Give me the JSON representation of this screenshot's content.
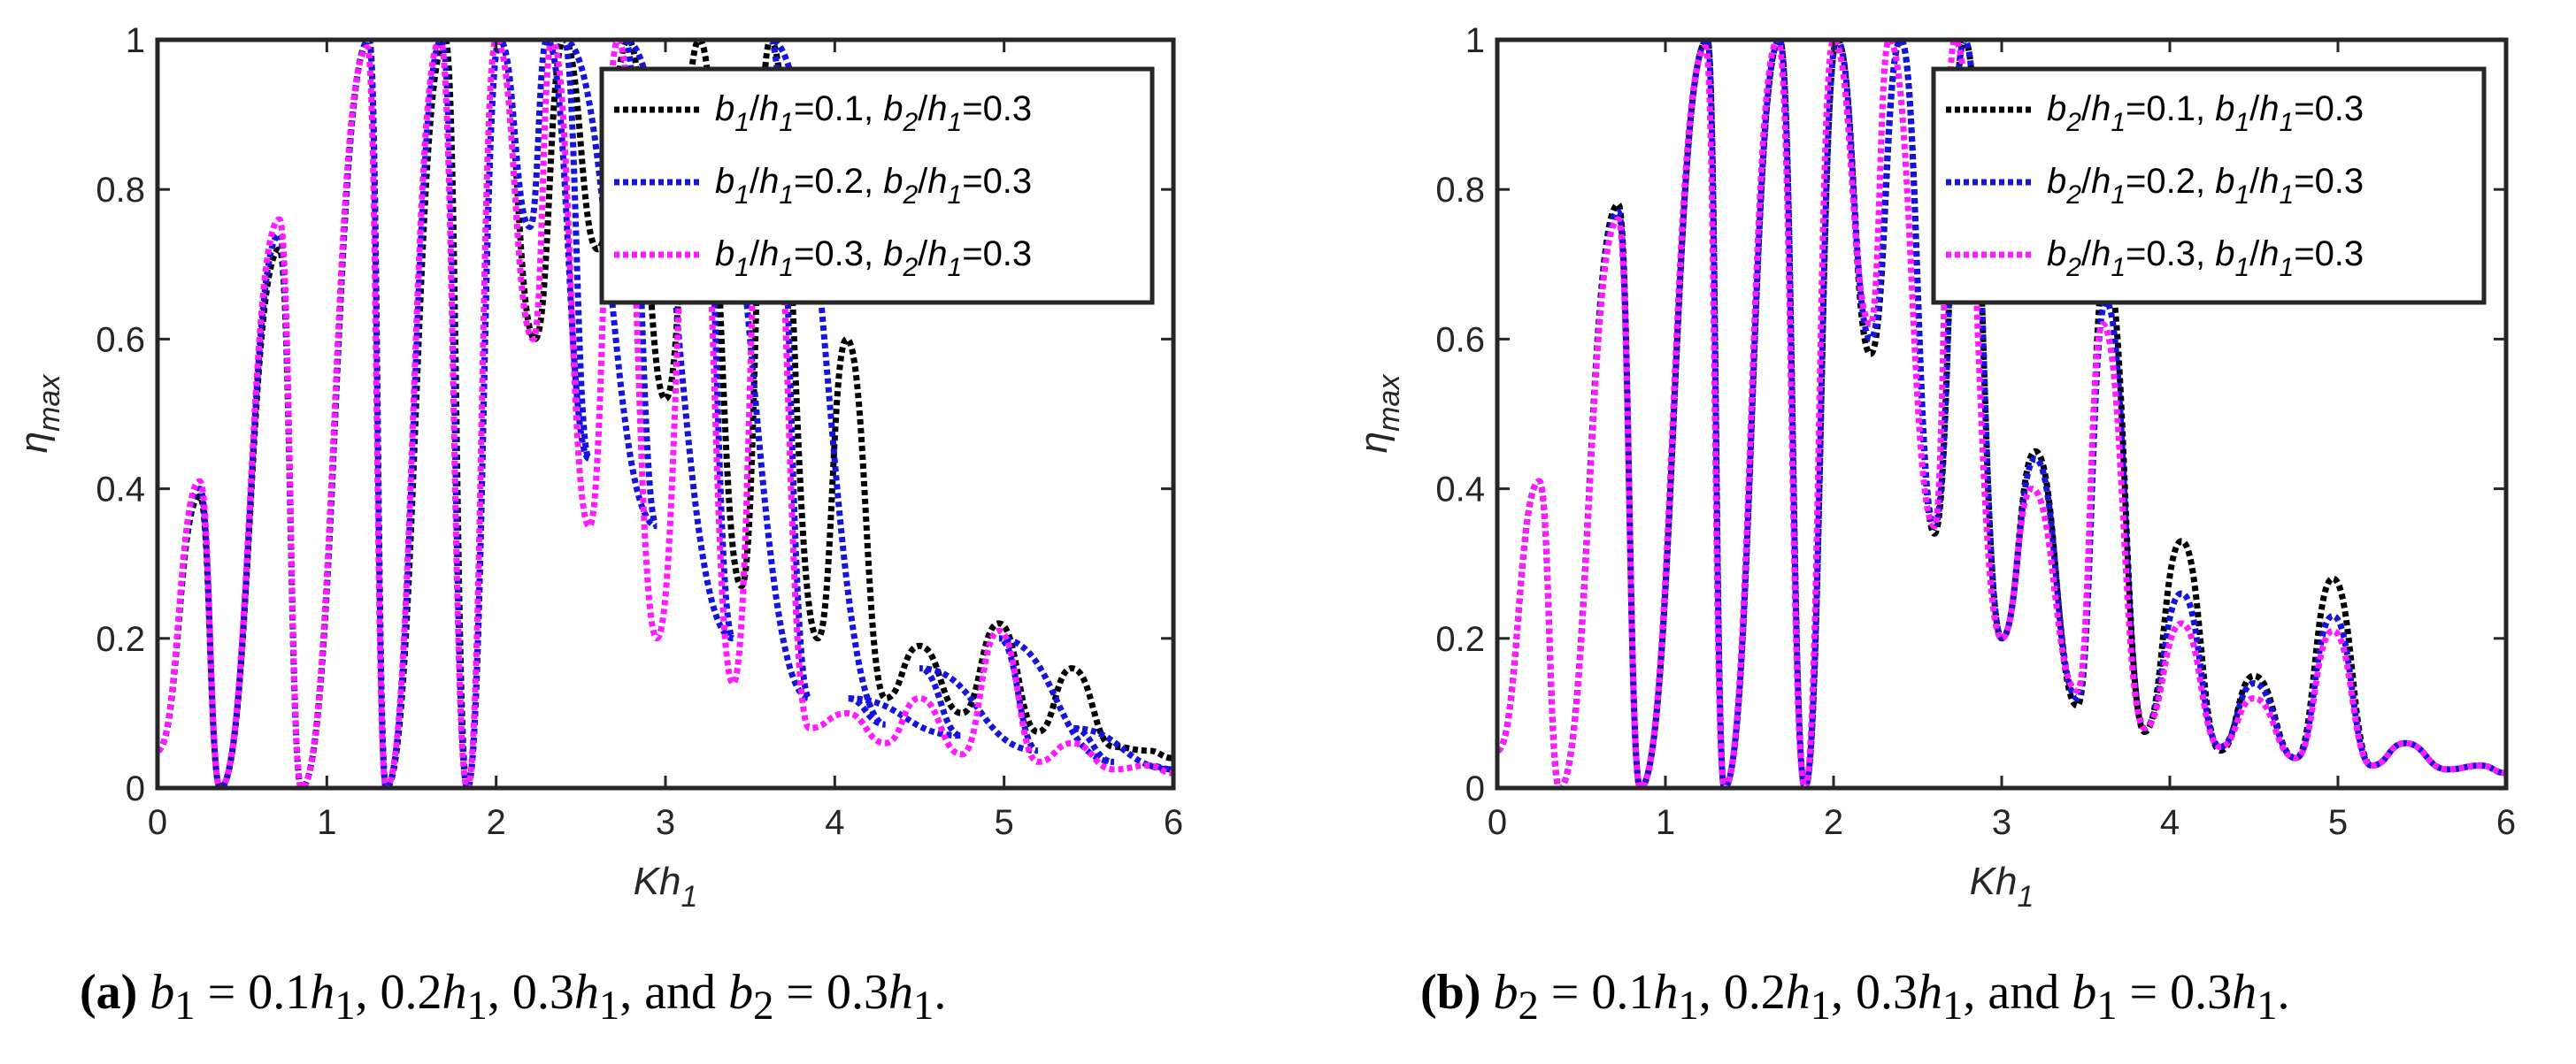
{
  "colors": {
    "series_1": "#000000",
    "series_2": "#1414dc",
    "series_3": "#ff1aff"
  },
  "chart_data": [
    {
      "type": "line",
      "panel": "a",
      "xlabel": "Kh1",
      "ylabel": "ηmax",
      "xlim": [
        0,
        6
      ],
      "ylim": [
        0,
        1
      ],
      "xticks": [
        "0",
        "1",
        "2",
        "3",
        "4",
        "5",
        "6"
      ],
      "yticks": [
        "0",
        "0.2",
        "0.4",
        "0.6",
        "0.8",
        "1"
      ],
      "legend": [
        {
          "a": "b",
          "as": "1",
          "b": "h",
          "bs": "1",
          "v1": "=0.1, ",
          "c": "b",
          "cs": "2",
          "d": "h",
          "ds": "1",
          "v2": "=0.3"
        },
        {
          "a": "b",
          "as": "1",
          "b": "h",
          "bs": "1",
          "v1": "=0.2, ",
          "c": "b",
          "cs": "2",
          "d": "h",
          "ds": "1",
          "v2": "=0.3"
        },
        {
          "a": "b",
          "as": "1",
          "b": "h",
          "bs": "1",
          "v1": "=0.3, ",
          "c": "b",
          "cs": "2",
          "d": "h",
          "ds": "1",
          "v2": "=0.3"
        }
      ],
      "series": [
        {
          "name": "b1/h1=0.1, b2/h1=0.3",
          "color": "#000000",
          "peaks": [
            [
              0.25,
              0.39
            ],
            [
              0.72,
              0.72
            ],
            [
              1.25,
              1.0
            ],
            [
              1.7,
              1.0
            ],
            [
              2.02,
              1.0
            ],
            [
              2.4,
              1.0
            ],
            [
              2.78,
              1.0
            ],
            [
              3.2,
              1.0
            ],
            [
              3.62,
              1.0
            ],
            [
              4.07,
              0.6
            ],
            [
              4.5,
              0.19
            ],
            [
              4.97,
              0.22
            ],
            [
              5.4,
              0.16
            ],
            [
              5.85,
              0.05
            ]
          ],
          "troughs": [
            [
              0.37,
              0.0
            ],
            [
              0.85,
              0.0
            ],
            [
              1.35,
              0.0
            ],
            [
              1.83,
              0.0
            ],
            [
              2.23,
              0.6
            ],
            [
              2.6,
              0.72
            ],
            [
              3.0,
              0.52
            ],
            [
              3.45,
              0.27
            ],
            [
              3.9,
              0.2
            ],
            [
              4.3,
              0.12
            ],
            [
              4.75,
              0.1
            ],
            [
              5.2,
              0.075
            ],
            [
              5.65,
              0.055
            ],
            [
              6.0,
              0.04
            ]
          ]
        },
        {
          "name": "b1/h1=0.2, b2/h1=0.3",
          "color": "#1414dc",
          "peaks": [
            [
              0.25,
              0.4
            ],
            [
              0.72,
              0.74
            ],
            [
              1.25,
              1.0
            ],
            [
              1.68,
              1.0
            ],
            [
              2.02,
              1.0
            ],
            [
              2.3,
              1.0
            ],
            [
              2.4,
              1.0
            ],
            [
              2.76,
              1.0
            ],
            [
              3.2,
              0.95
            ],
            [
              3.62,
              1.0
            ],
            [
              4.07,
              0.12
            ],
            [
              4.5,
              0.16
            ],
            [
              4.97,
              0.2
            ],
            [
              5.4,
              0.08
            ],
            [
              5.85,
              0.03
            ]
          ],
          "troughs": [
            [
              0.37,
              0.0
            ],
            [
              0.85,
              0.0
            ],
            [
              1.35,
              0.0
            ],
            [
              1.83,
              0.0
            ],
            [
              2.2,
              0.75
            ],
            [
              2.55,
              0.44
            ],
            [
              2.95,
              0.35
            ],
            [
              3.4,
              0.2
            ],
            [
              3.85,
              0.12
            ],
            [
              4.3,
              0.085
            ],
            [
              4.75,
              0.07
            ],
            [
              5.2,
              0.05
            ],
            [
              5.65,
              0.035
            ],
            [
              6.0,
              0.025
            ]
          ]
        },
        {
          "name": "b1/h1=0.3, b2/h1=0.3",
          "color": "#ff1aff",
          "peaks": [
            [
              0.25,
              0.41
            ],
            [
              0.72,
              0.76
            ],
            [
              1.24,
              0.99
            ],
            [
              1.67,
              1.0
            ],
            [
              2.0,
              1.0
            ],
            [
              2.33,
              1.0
            ],
            [
              2.72,
              1.0
            ],
            [
              3.18,
              0.92
            ],
            [
              3.6,
              0.95
            ],
            [
              4.07,
              0.1
            ],
            [
              4.5,
              0.12
            ],
            [
              4.97,
              0.21
            ],
            [
              5.4,
              0.06
            ],
            [
              5.85,
              0.03
            ]
          ],
          "troughs": [
            [
              0.37,
              0.0
            ],
            [
              0.85,
              0.0
            ],
            [
              1.35,
              0.0
            ],
            [
              1.83,
              0.0
            ],
            [
              2.22,
              0.6
            ],
            [
              2.55,
              0.35
            ],
            [
              2.95,
              0.2
            ],
            [
              3.4,
              0.14
            ],
            [
              3.85,
              0.08
            ],
            [
              4.3,
              0.06
            ],
            [
              4.75,
              0.045
            ],
            [
              5.2,
              0.035
            ],
            [
              5.65,
              0.025
            ],
            [
              6.0,
              0.02
            ]
          ]
        }
      ]
    },
    {
      "type": "line",
      "panel": "b",
      "xlabel": "Kh1",
      "ylabel": "ηmax",
      "xlim": [
        0,
        6
      ],
      "ylim": [
        0,
        1
      ],
      "xticks": [
        "0",
        "1",
        "2",
        "3",
        "4",
        "5",
        "6"
      ],
      "yticks": [
        "0",
        "0.2",
        "0.4",
        "0.6",
        "0.8",
        "1"
      ],
      "legend": [
        {
          "a": "b",
          "as": "2",
          "b": "h",
          "bs": "1",
          "v1": "=0.1, ",
          "c": "b",
          "cs": "1",
          "d": "h",
          "ds": "1",
          "v2": "=0.3"
        },
        {
          "a": "b",
          "as": "2",
          "b": "h",
          "bs": "1",
          "v1": "=0.2, ",
          "c": "b",
          "cs": "1",
          "d": "h",
          "ds": "1",
          "v2": "=0.3"
        },
        {
          "a": "b",
          "as": "2",
          "b": "h",
          "bs": "1",
          "v1": "=0.3, ",
          "c": "b",
          "cs": "1",
          "d": "h",
          "ds": "1",
          "v2": "=0.3"
        }
      ],
      "series": [
        {
          "name": "b2/h1=0.1, b1/h1=0.3",
          "color": "#000000",
          "peaks": [
            [
              0.25,
              0.41
            ],
            [
              0.72,
              0.78
            ],
            [
              1.25,
              1.0
            ],
            [
              1.68,
              1.0
            ],
            [
              2.02,
              1.0
            ],
            [
              2.4,
              1.0
            ],
            [
              2.78,
              1.0
            ],
            [
              3.2,
              0.45
            ],
            [
              3.62,
              0.7
            ],
            [
              4.07,
              0.33
            ],
            [
              4.5,
              0.15
            ],
            [
              4.97,
              0.28
            ],
            [
              5.4,
              0.06
            ],
            [
              5.85,
              0.03
            ]
          ],
          "troughs": [
            [
              0.37,
              0.0
            ],
            [
              0.85,
              0.0
            ],
            [
              1.35,
              0.0
            ],
            [
              1.83,
              0.0
            ],
            [
              2.22,
              0.58
            ],
            [
              2.6,
              0.34
            ],
            [
              3.0,
              0.2
            ],
            [
              3.45,
              0.11
            ],
            [
              3.85,
              0.075
            ],
            [
              4.3,
              0.05
            ],
            [
              4.75,
              0.04
            ],
            [
              5.2,
              0.03
            ],
            [
              5.65,
              0.025
            ],
            [
              6.0,
              0.02
            ]
          ]
        },
        {
          "name": "b2/h1=0.2, b1/h1=0.3",
          "color": "#1414dc",
          "peaks": [
            [
              0.25,
              0.41
            ],
            [
              0.72,
              0.77
            ],
            [
              1.25,
              1.0
            ],
            [
              1.68,
              1.0
            ],
            [
              2.02,
              1.0
            ],
            [
              2.4,
              1.0
            ],
            [
              2.78,
              1.0
            ],
            [
              3.2,
              0.44
            ],
            [
              3.62,
              0.65
            ],
            [
              4.07,
              0.26
            ],
            [
              4.5,
              0.14
            ],
            [
              4.97,
              0.23
            ],
            [
              5.4,
              0.06
            ],
            [
              5.85,
              0.03
            ]
          ],
          "troughs": [
            [
              0.37,
              0.0
            ],
            [
              0.85,
              0.0
            ],
            [
              1.35,
              0.0
            ],
            [
              1.83,
              0.0
            ],
            [
              2.22,
              0.6
            ],
            [
              2.6,
              0.35
            ],
            [
              3.0,
              0.2
            ],
            [
              3.45,
              0.12
            ],
            [
              3.85,
              0.08
            ],
            [
              4.3,
              0.055
            ],
            [
              4.75,
              0.04
            ],
            [
              5.2,
              0.03
            ],
            [
              5.65,
              0.025
            ],
            [
              6.0,
              0.02
            ]
          ]
        },
        {
          "name": "b2/h1=0.3, b1/h1=0.3",
          "color": "#ff1aff",
          "peaks": [
            [
              0.25,
              0.41
            ],
            [
              0.72,
              0.76
            ],
            [
              1.24,
              0.99
            ],
            [
              1.67,
              1.0
            ],
            [
              2.0,
              1.0
            ],
            [
              2.33,
              1.0
            ],
            [
              2.72,
              1.0
            ],
            [
              3.18,
              0.4
            ],
            [
              3.6,
              0.62
            ],
            [
              4.07,
              0.22
            ],
            [
              4.5,
              0.12
            ],
            [
              4.97,
              0.21
            ],
            [
              5.4,
              0.06
            ],
            [
              5.85,
              0.03
            ]
          ],
          "troughs": [
            [
              0.37,
              0.0
            ],
            [
              0.85,
              0.0
            ],
            [
              1.35,
              0.0
            ],
            [
              1.83,
              0.0
            ],
            [
              2.22,
              0.62
            ],
            [
              2.6,
              0.35
            ],
            [
              3.0,
              0.2
            ],
            [
              3.45,
              0.13
            ],
            [
              3.85,
              0.08
            ],
            [
              4.3,
              0.055
            ],
            [
              4.75,
              0.04
            ],
            [
              5.2,
              0.03
            ],
            [
              5.65,
              0.025
            ],
            [
              6.0,
              0.02
            ]
          ]
        }
      ]
    }
  ],
  "captions": {
    "a": {
      "tag": "(a)",
      "v1": "b",
      "s1": "1",
      "eq1": " = 0.1",
      "h1": "h",
      "h1s": "1",
      "c1": ", 0.2",
      "h2": "h",
      "h2s": "1",
      "c2": ", 0.3",
      "h3": "h",
      "h3s": "1",
      "and": ", and ",
      "v2": "b",
      "s2": "2",
      "eq2": " = 0.3",
      "h4": "h",
      "h4s": "1",
      "end": "."
    },
    "b": {
      "tag": "(b)",
      "v1": "b",
      "s1": "2",
      "eq1": " = 0.1",
      "h1": "h",
      "h1s": "1",
      "c1": ", 0.2",
      "h2": "h",
      "h2s": "1",
      "c2": ", 0.3",
      "h3": "h",
      "h3s": "1",
      "and": ", and ",
      "v2": "b",
      "s2": "1",
      "eq2": " = 0.3",
      "h4": "h",
      "h4s": "1",
      "end": "."
    }
  }
}
